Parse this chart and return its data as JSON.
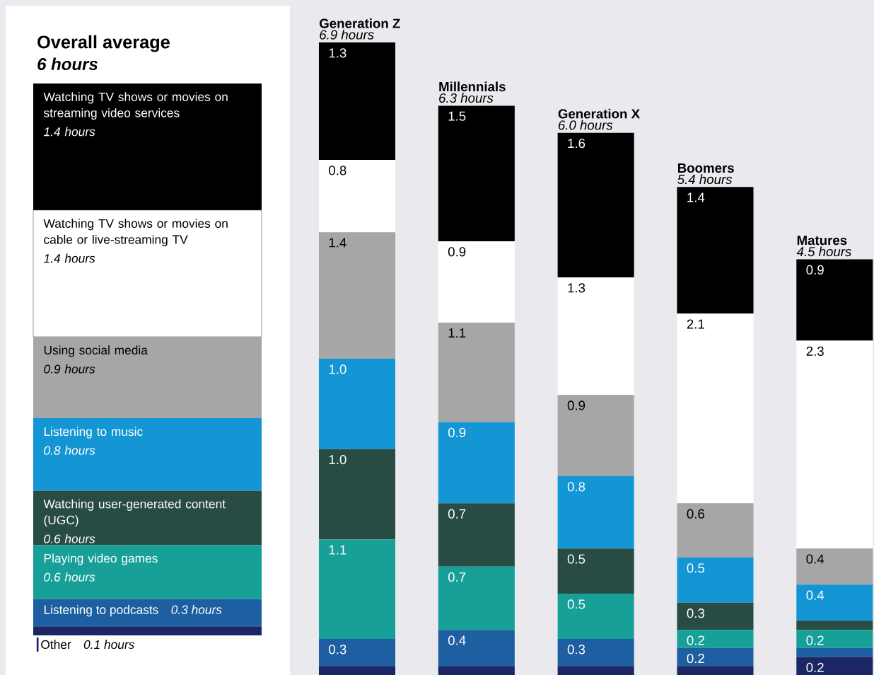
{
  "chart_data": [
    {
      "type": "bar",
      "stacked": true,
      "title": "Overall average",
      "subtitle": "6 hours",
      "categories": [
        null
      ],
      "series": [
        {
          "name": "Other",
          "color": "#1b2664",
          "values": [
            0.1
          ],
          "value_labels": [
            "0.1 hours"
          ]
        },
        {
          "name": "Listening to podcasts",
          "color": "#1d5fa0",
          "values": [
            0.3
          ],
          "value_labels": [
            "0.3 hours"
          ]
        },
        {
          "name": "Playing video games",
          "color": "#17a097",
          "values": [
            0.6
          ],
          "value_labels": [
            "0.6 hours"
          ]
        },
        {
          "name": "Watching user-generated content (UGC)",
          "color": "#284c44",
          "values": [
            0.6
          ],
          "value_labels": [
            "0.6 hours"
          ]
        },
        {
          "name": "Listening to music",
          "color": "#1496d4",
          "values": [
            0.8
          ],
          "value_labels": [
            "0.8 hours"
          ]
        },
        {
          "name": "Using social media",
          "color": "#a6a6a6",
          "values": [
            0.9
          ],
          "value_labels": [
            "0.9 hours"
          ]
        },
        {
          "name": "Watching TV shows or movies on cable or live-streaming TV",
          "color": "#ffffff",
          "values": [
            1.4
          ],
          "value_labels": [
            "1.4 hours"
          ]
        },
        {
          "name": "Watching TV shows or movies on streaming video services",
          "color": "#000000",
          "values": [
            1.4
          ],
          "value_labels": [
            "1.4 hours"
          ]
        }
      ]
    },
    {
      "type": "bar",
      "stacked": true,
      "categories": [
        "Generation Z",
        "Millennials",
        "Generation X",
        "Boomers",
        "Matures"
      ],
      "totals": [
        "6.9 hours",
        "6.3 hours",
        "6.0 hours",
        "5.4 hours",
        "4.5 hours"
      ],
      "series": [
        {
          "color": "#1b2664",
          "values": [
            0.1,
            0.1,
            0.1,
            0.1,
            0.2
          ],
          "value_labels": [
            null,
            null,
            null,
            null,
            "0.2"
          ]
        },
        {
          "color": "#1d5fa0",
          "values": [
            0.3,
            0.4,
            0.3,
            0.2,
            0.1
          ],
          "value_labels": [
            "0.3",
            "0.4",
            "0.3",
            "0.2",
            null
          ]
        },
        {
          "color": "#17a097",
          "values": [
            1.1,
            0.7,
            0.5,
            0.2,
            0.2
          ],
          "value_labels": [
            "1.1",
            "0.7",
            "0.5",
            "0.2",
            "0.2"
          ]
        },
        {
          "color": "#284c44",
          "values": [
            1.0,
            0.7,
            0.5,
            0.3,
            0.1
          ],
          "value_labels": [
            "1.0",
            "0.7",
            "0.5",
            "0.3",
            null
          ]
        },
        {
          "color": "#1496d4",
          "values": [
            1.0,
            0.9,
            0.8,
            0.5,
            0.4
          ],
          "value_labels": [
            "1.0",
            "0.9",
            "0.8",
            "0.5",
            "0.4"
          ]
        },
        {
          "color": "#a6a6a6",
          "values": [
            1.4,
            1.1,
            0.9,
            0.6,
            0.4
          ],
          "value_labels": [
            "1.4",
            "1.1",
            "0.9",
            "0.6",
            "0.4"
          ]
        },
        {
          "color": "#ffffff",
          "values": [
            0.8,
            0.9,
            1.3,
            2.1,
            2.3
          ],
          "value_labels": [
            "0.8",
            "0.9",
            "1.3",
            "2.1",
            "2.3"
          ]
        },
        {
          "color": "#000000",
          "values": [
            1.3,
            1.5,
            1.6,
            1.4,
            0.9
          ],
          "value_labels": [
            "1.3",
            "1.5",
            "1.6",
            "1.4",
            "0.9"
          ]
        }
      ]
    }
  ]
}
